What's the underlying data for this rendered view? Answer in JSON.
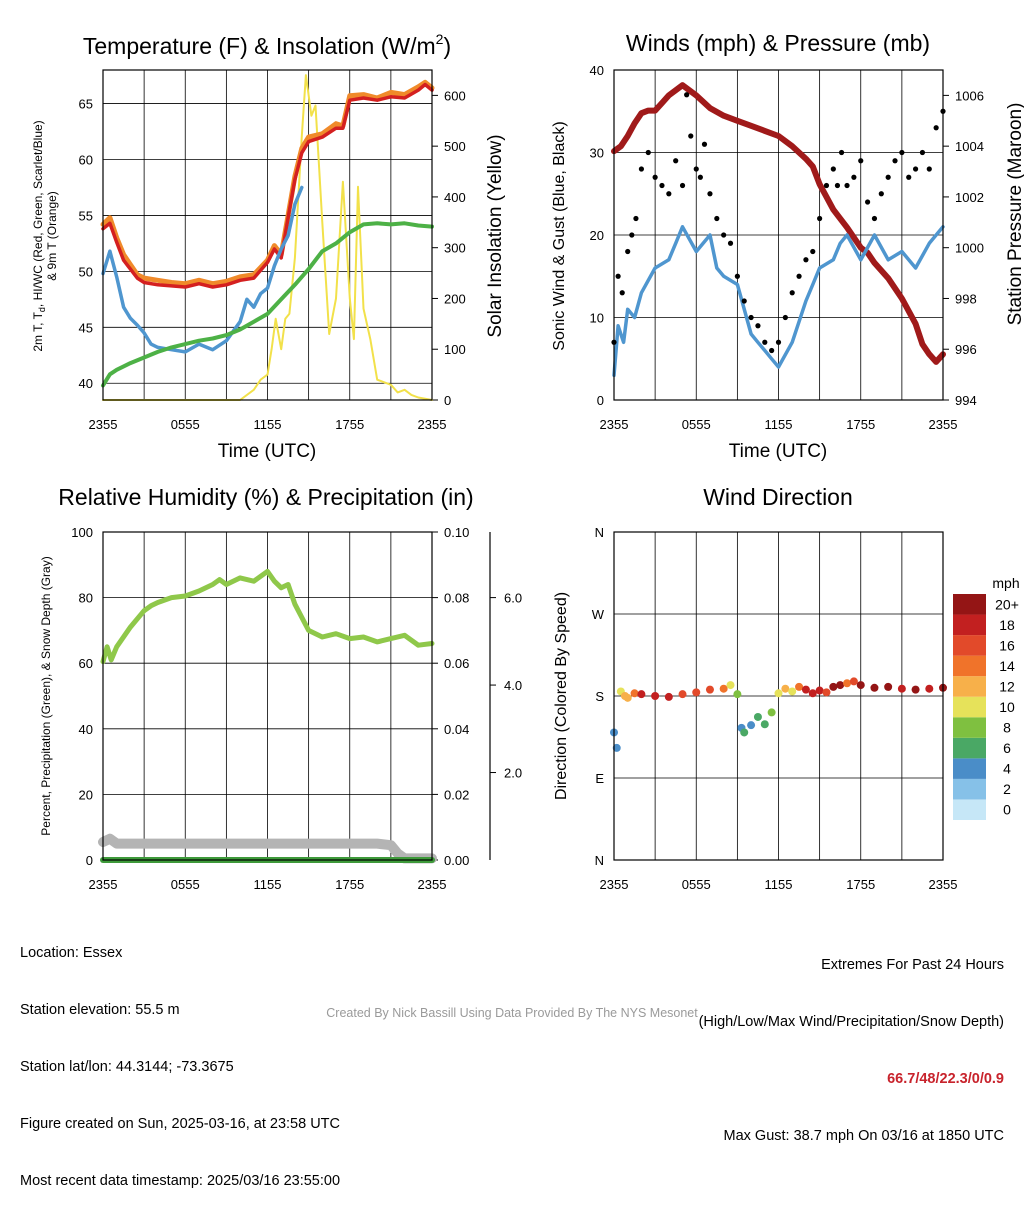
{
  "panels": {
    "temp": {
      "title": "Temperature (F) & Insolation (W/m",
      "title_sup": "2",
      "title_end": ")",
      "ylabel_left": "2m T, T",
      "ylabel_left_sub": "d",
      "ylabel_left_rest": ", HI/WC (Red, Green, Scarlet/Blue)",
      "ylabel_left2": "& 9m T (Orange)",
      "ylabel_right": "Solar Insolation (Yellow)",
      "xlabel": "Time (UTC)"
    },
    "wind": {
      "title": "Winds (mph) & Pressure (mb)",
      "ylabel_left": "Sonic Wind & Gust (Blue, Black)",
      "ylabel_right": "Station Pressure (Maroon)",
      "xlabel": "Time (UTC)"
    },
    "rh": {
      "title": "Relative Humidity (%) & Precipitation (in)",
      "ylabel_left": "Percent, Precipitation (Green), & Snow Depth (Gray)"
    },
    "dir": {
      "title": "Wind Direction",
      "ylabel_left": "Direction (Colored By Speed)",
      "legend_title": "mph"
    }
  },
  "x_ticks": [
    "2355",
    "0555",
    "1155",
    "1755",
    "2355"
  ],
  "info_left": [
    "Location: Essex",
    "Station elevation: 55.5 m",
    "Station lat/lon: 44.3144; -73.3675",
    "Figure created on Sun, 2025-03-16, at 23:58 UTC",
    "Most recent data timestamp: 2025/03/16 23:55:00"
  ],
  "extremes": {
    "line1": "Extremes For Past 24 Hours",
    "line2": "(High/Low/Max Wind/Precipitation/Snow Depth)",
    "values": "66.7/48/22.3/0/0.9",
    "gust": "Max Gust: 38.7 mph On 03/16 at 1850 UTC"
  },
  "credit": "Created By Nick Bassill Using Data Provided By The NYS Mesonet",
  "chart_data": [
    {
      "type": "line",
      "title": "Temperature (F) & Insolation (W/m2)",
      "xlabel": "Time (UTC)",
      "ylabel": "2m T, Td, HI/WC (Red, Green, Scarlet/Blue) & 9m T (Orange)",
      "y2label": "Solar Insolation (Yellow)",
      "x_hours": [
        0,
        24
      ],
      "ylim": [
        38.5,
        68
      ],
      "y2lim": [
        0,
        650
      ],
      "yticks": [
        40,
        45,
        50,
        55,
        60,
        65
      ],
      "y2ticks": [
        0,
        100,
        200,
        300,
        400,
        500,
        600
      ],
      "grid": true,
      "series": [
        {
          "name": "9m T",
          "color": "#f08a2a",
          "axis": "left",
          "x": [
            0,
            0.5,
            1,
            1.5,
            2,
            2.5,
            3,
            4,
            5,
            6,
            7,
            8,
            9,
            10,
            11,
            12,
            12.5,
            13,
            13.5,
            14,
            14.5,
            15,
            16,
            17,
            17.5,
            18,
            19,
            20,
            21,
            22,
            23,
            23.5,
            24
          ],
          "y": [
            54.2,
            54.8,
            53.0,
            51.5,
            50.6,
            49.7,
            49.4,
            49.2,
            49.0,
            48.9,
            49.2,
            48.9,
            49.1,
            49.5,
            49.7,
            51.0,
            52.3,
            51.5,
            55.0,
            58.5,
            61.0,
            62.0,
            62.3,
            63.2,
            63.0,
            65.7,
            65.8,
            65.5,
            66.0,
            65.8,
            66.5,
            66.9,
            66.4
          ]
        },
        {
          "name": "2m T",
          "color": "#d42020",
          "axis": "left",
          "x": [
            0,
            0.5,
            1,
            1.5,
            2,
            2.5,
            3,
            4,
            5,
            6,
            7,
            8,
            9,
            10,
            11,
            12,
            12.5,
            13,
            13.5,
            14,
            14.5,
            15,
            16,
            17,
            17.5,
            18,
            19,
            20,
            21,
            22,
            23,
            23.5,
            24
          ],
          "y": [
            53.8,
            54.3,
            52.6,
            51.0,
            50.2,
            49.4,
            49.0,
            48.8,
            48.7,
            48.6,
            48.9,
            48.6,
            48.8,
            49.2,
            49.4,
            50.8,
            52.0,
            51.2,
            54.8,
            58.2,
            60.6,
            61.6,
            62.0,
            62.8,
            62.8,
            65.3,
            65.5,
            65.3,
            65.6,
            65.5,
            66.2,
            66.7,
            66.2
          ]
        },
        {
          "name": "HI/WC",
          "color": "#4f96cf",
          "axis": "left",
          "x": [
            0,
            0.5,
            1,
            1.5,
            2,
            2.5,
            3,
            3.5,
            4,
            5,
            6,
            7,
            8,
            9,
            10,
            10.5,
            11,
            11.5,
            12,
            12.5,
            13,
            13.5,
            14,
            14.5
          ],
          "y": [
            49.8,
            51.8,
            49.5,
            46.8,
            45.8,
            45.2,
            44.5,
            43.5,
            43.2,
            43.0,
            42.8,
            43.5,
            43.0,
            43.8,
            45.5,
            47.5,
            46.8,
            48.0,
            48.5,
            50.5,
            52.0,
            53.2,
            56.0,
            57.5
          ]
        },
        {
          "name": "Td",
          "color": "#4db146",
          "axis": "left",
          "x": [
            0,
            0.5,
            1,
            1.5,
            2,
            3,
            4,
            5,
            6,
            7,
            8,
            9,
            10,
            11,
            12,
            13,
            14,
            15,
            16,
            17,
            18,
            19,
            20,
            21,
            22,
            23,
            24
          ],
          "y": [
            39.8,
            40.8,
            41.2,
            41.5,
            41.8,
            42.3,
            42.8,
            43.2,
            43.5,
            43.8,
            44.0,
            44.3,
            44.8,
            45.5,
            46.2,
            47.5,
            48.8,
            50.2,
            51.8,
            52.5,
            53.5,
            54.2,
            54.3,
            54.2,
            54.3,
            54.1,
            54.0
          ]
        },
        {
          "name": "Solar",
          "color": "#f2e14a",
          "axis": "right",
          "x": [
            0,
            10,
            11,
            11.5,
            12,
            12.3,
            12.6,
            13,
            13.3,
            13.6,
            14,
            14.5,
            14.8,
            15.2,
            15.5,
            16,
            16.5,
            17,
            17.5,
            18,
            18.3,
            18.6,
            19,
            19.5,
            20,
            21,
            21.5,
            22,
            22.5,
            23,
            24
          ],
          "y": [
            0,
            0,
            20,
            40,
            50,
            100,
            160,
            100,
            160,
            170,
            280,
            520,
            640,
            560,
            580,
            350,
            130,
            200,
            430,
            200,
            120,
            420,
            180,
            120,
            40,
            30,
            15,
            20,
            10,
            5,
            0
          ]
        }
      ]
    },
    {
      "type": "line",
      "title": "Winds (mph) & Pressure (mb)",
      "xlabel": "Time (UTC)",
      "ylabel": "Sonic Wind & Gust (Blue, Black)",
      "y2label": "Station Pressure (Maroon)",
      "x_hours": [
        0,
        24
      ],
      "ylim": [
        0,
        40
      ],
      "y2lim": [
        994,
        1007
      ],
      "yticks": [
        0,
        10,
        20,
        30,
        40
      ],
      "y2ticks": [
        994,
        996,
        998,
        1000,
        1002,
        1004,
        1006
      ],
      "grid": true,
      "series": [
        {
          "name": "Wind",
          "color": "#4f96cf",
          "axis": "left",
          "x": [
            0,
            0.3,
            0.7,
            1,
            1.5,
            2,
            3,
            4,
            4.5,
            5,
            6,
            7,
            7.5,
            8,
            9,
            10,
            10.5,
            11,
            11.5,
            12,
            13,
            14,
            14.5,
            15,
            16,
            16.5,
            17,
            18,
            19,
            20,
            21,
            22,
            23,
            24
          ],
          "y": [
            3,
            9,
            7,
            11,
            10,
            13,
            16,
            17,
            19,
            21,
            18,
            20,
            16,
            15,
            14,
            8,
            7,
            6,
            5,
            4,
            7,
            12,
            14,
            16,
            17,
            19,
            20,
            17,
            20,
            17,
            18,
            16,
            19,
            21
          ]
        },
        {
          "name": "Gust",
          "color": "#000000",
          "axis": "left",
          "x": [
            0,
            0.3,
            0.6,
            1,
            1.3,
            1.6,
            2,
            2.5,
            3,
            3.5,
            4,
            4.5,
            5,
            5.3,
            5.6,
            6,
            6.3,
            6.6,
            7,
            7.5,
            8,
            8.5,
            9,
            9.5,
            10,
            10.5,
            11,
            11.5,
            12,
            12.5,
            13,
            13.5,
            14,
            14.5,
            15,
            15.5,
            16,
            16.3,
            16.6,
            17,
            17.5,
            18,
            18.5,
            19,
            19.5,
            20,
            20.5,
            21,
            21.5,
            22,
            22.5,
            23,
            23.5,
            24
          ],
          "y": [
            7,
            15,
            13,
            18,
            20,
            22,
            28,
            30,
            27,
            26,
            25,
            29,
            26,
            37,
            32,
            28,
            27,
            31,
            25,
            22,
            20,
            19,
            15,
            12,
            10,
            9,
            7,
            6,
            7,
            10,
            13,
            15,
            17,
            18,
            22,
            26,
            28,
            26,
            30,
            26,
            27,
            29,
            24,
            22,
            25,
            27,
            29,
            30,
            27,
            28,
            30,
            28,
            33,
            35
          ]
        },
        {
          "name": "Pressure",
          "color": "#a01a1a",
          "axis": "right",
          "x": [
            0,
            0.5,
            1,
            1.5,
            2,
            2.5,
            3,
            3.5,
            4,
            5,
            6,
            7,
            8,
            9,
            10,
            11,
            12,
            13,
            14,
            14.5,
            15,
            15.5,
            16,
            17,
            18,
            18.5,
            19,
            20,
            21,
            22,
            22.5,
            23,
            23.5,
            24
          ],
          "y": [
            1003.8,
            1004.0,
            1004.4,
            1004.9,
            1005.3,
            1005.4,
            1005.4,
            1005.7,
            1006.0,
            1006.4,
            1006.0,
            1005.5,
            1005.2,
            1005.0,
            1004.8,
            1004.6,
            1004.4,
            1004.0,
            1003.5,
            1003.2,
            1002.5,
            1002.0,
            1001.5,
            1000.8,
            1000.0,
            999.8,
            999.4,
            998.8,
            998.0,
            997.0,
            996.2,
            995.8,
            995.5,
            995.8
          ]
        }
      ]
    },
    {
      "type": "line",
      "title": "Relative Humidity (%) & Precipitation (in)",
      "ylabel": "Percent, Precipitation (Green), & Snow Depth (Gray)",
      "x_hours": [
        0,
        24
      ],
      "ylim": [
        0,
        100
      ],
      "yticks": [
        0,
        20,
        40,
        60,
        80,
        100
      ],
      "y2ticks": [
        "0.00",
        "0.02",
        "0.04",
        "0.06",
        "0.08",
        "0.10"
      ],
      "y3ticks": [
        "2.0",
        "4.0",
        "6.0"
      ],
      "grid": true,
      "series": [
        {
          "name": "RH",
          "color": "#8fc84a",
          "axis": "left",
          "x": [
            0,
            0.3,
            0.6,
            1,
            2,
            3,
            3.5,
            4,
            5,
            6,
            7,
            8,
            8.5,
            9,
            10,
            11,
            12,
            12.5,
            13,
            13.5,
            14,
            15,
            16,
            17,
            18,
            19,
            20,
            21,
            22,
            23,
            24
          ],
          "y": [
            60.5,
            65,
            61,
            65,
            71,
            76,
            77.5,
            78.5,
            80,
            80.5,
            82,
            84,
            85.5,
            84,
            86,
            85,
            88,
            85,
            83,
            84,
            78,
            70,
            68,
            69,
            67.5,
            68,
            66.5,
            67.5,
            68.5,
            65.5,
            66
          ]
        },
        {
          "name": "Snow Depth",
          "color": "#b4b4b4",
          "axis": "left",
          "x": [
            0,
            0.5,
            1,
            2,
            12,
            18,
            20,
            21,
            21.5,
            22,
            24
          ],
          "y": [
            5.5,
            6.5,
            5,
            5,
            5,
            5,
            5,
            4.5,
            2,
            0.5,
            0.5
          ]
        },
        {
          "name": "Precipitation",
          "color": "#3e9a3a",
          "axis": "left",
          "x": [
            0,
            24
          ],
          "y": [
            0,
            0
          ]
        }
      ]
    },
    {
      "type": "scatter",
      "title": "Wind Direction",
      "ylabel": "Direction (Colored By Speed)",
      "x_hours": [
        0,
        24
      ],
      "ylim": [
        0,
        360
      ],
      "yticks": [
        "N",
        "E",
        "S",
        "W",
        "N"
      ],
      "grid": true,
      "legend_title": "mph",
      "legend": [
        "0",
        "2",
        "4",
        "6",
        "8",
        "10",
        "12",
        "14",
        "16",
        "18",
        "20+"
      ],
      "legend_colors": [
        "#c6e7f7",
        "#86c1e8",
        "#4a8dc8",
        "#4aa865",
        "#7fc040",
        "#e6e25a",
        "#f7b04a",
        "#f0732a",
        "#e24a2a",
        "#c22020",
        "#941515"
      ],
      "series": [
        {
          "name": "direction",
          "x": [
            0,
            0.2,
            0.5,
            0.8,
            1,
            1.5,
            2,
            3,
            4,
            5,
            6,
            7,
            8,
            8.5,
            9,
            9.3,
            9.5,
            10,
            10.5,
            11,
            11.5,
            12,
            12.5,
            13,
            13.5,
            14,
            14.5,
            15,
            15.5,
            16,
            16.5,
            17,
            17.5,
            18,
            19,
            20,
            21,
            22,
            23,
            24
          ],
          "y": [
            140,
            123,
            185,
            180,
            178,
            183,
            182,
            180,
            179,
            182,
            184,
            187,
            188,
            192,
            182,
            145,
            140,
            148,
            157,
            149,
            162,
            183,
            188,
            185,
            190,
            187,
            183,
            186,
            184,
            190,
            192,
            194,
            196,
            192,
            189,
            190,
            188,
            187,
            188,
            189
          ],
          "speed": [
            4,
            3,
            9,
            11,
            12,
            14,
            17,
            18,
            17,
            16,
            15,
            16,
            13,
            9,
            7,
            4,
            5,
            4,
            6,
            5,
            8,
            10,
            12,
            10,
            14,
            17,
            18,
            17,
            16,
            19,
            20,
            13,
            15,
            19,
            20,
            19,
            18,
            20,
            18,
            19
          ]
        }
      ]
    }
  ]
}
